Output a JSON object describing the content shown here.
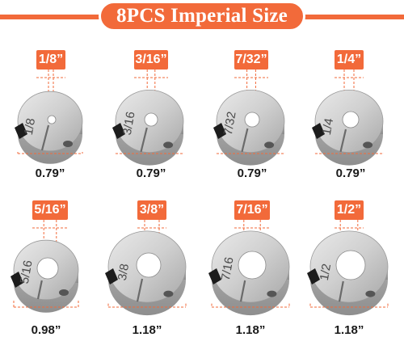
{
  "title": "8PCS Imperial Size",
  "accent_color": "#f26a3a",
  "items": [
    {
      "bore": "1/8”",
      "engraving": "1/8",
      "od": "0.79”"
    },
    {
      "bore": "3/16”",
      "engraving": "3/16",
      "od": "0.79”"
    },
    {
      "bore": "7/32”",
      "engraving": "7/32",
      "od": "0.79”"
    },
    {
      "bore": "1/4”",
      "engraving": "1/4",
      "od": "0.79”"
    },
    {
      "bore": "5/16”",
      "engraving": "5/16",
      "od": "0.98”"
    },
    {
      "bore": "3/8”",
      "engraving": "3/8",
      "od": "1.18”"
    },
    {
      "bore": "7/16”",
      "engraving": "7/16",
      "od": "1.18”"
    },
    {
      "bore": "1/2”",
      "engraving": "1/2",
      "od": "1.18”"
    }
  ]
}
